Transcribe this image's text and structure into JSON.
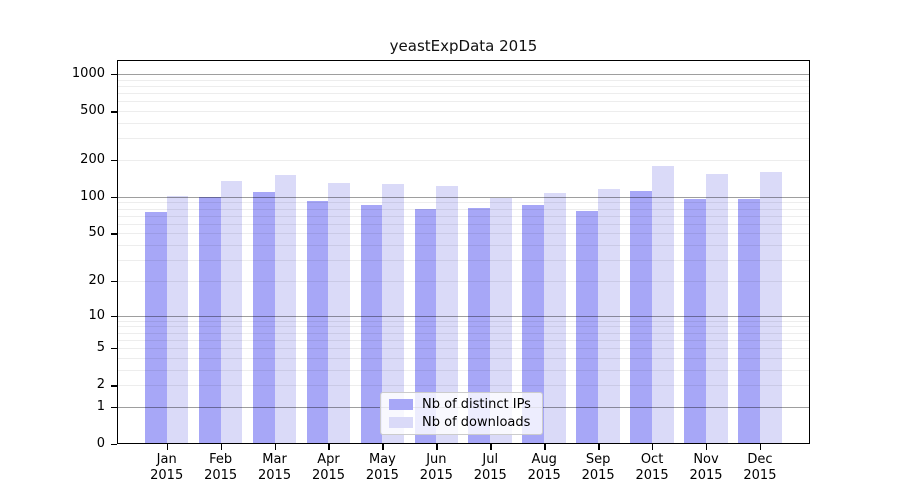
{
  "chart_data": {
    "type": "bar",
    "title": "yeastExpData 2015",
    "categories": [
      "Jan",
      "Feb",
      "Mar",
      "Apr",
      "May",
      "Jun",
      "Jul",
      "Aug",
      "Sep",
      "Oct",
      "Nov",
      "Dec"
    ],
    "year": "2015",
    "series": [
      {
        "name": "Nb of distinct IPs",
        "color": "#a7a7f7",
        "values": [
          75,
          100,
          110,
          92,
          86,
          79,
          81,
          86,
          77,
          112,
          96,
          96
        ]
      },
      {
        "name": "Nb of downloads",
        "color": "#dadaf8",
        "values": [
          102,
          135,
          150,
          130,
          128,
          123,
          97,
          108,
          115,
          180,
          155,
          160
        ]
      }
    ],
    "y_ticks": [
      1000,
      500,
      200,
      100,
      50,
      20,
      10,
      5,
      2,
      1,
      0
    ],
    "y_scale": "log10(1+value)",
    "ylim": [
      0,
      1300
    ],
    "grid": true,
    "minor_grid": true,
    "legend_position": "lower-center",
    "frame_color": "#000000",
    "background_color": "#ffffff"
  }
}
